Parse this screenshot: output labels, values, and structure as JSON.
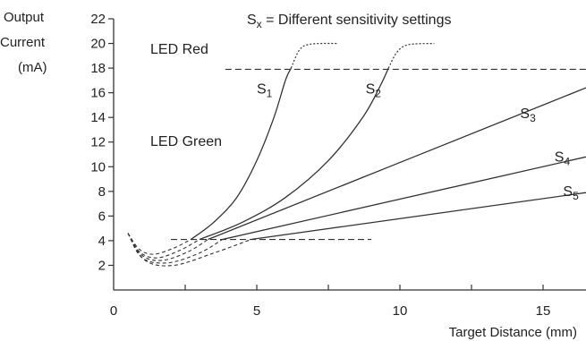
{
  "chart_data": {
    "type": "line",
    "title": "Sx = Different sensitivity settings",
    "title_parts": {
      "pre": "S",
      "sub": "x",
      "post": " = Different sensitivity settings"
    },
    "ylabel_lines": [
      "Output",
      "Current",
      "(mA)"
    ],
    "xlabel": "Target Distance (mm)",
    "xlim": [
      0,
      16.5
    ],
    "ylim": [
      0,
      22
    ],
    "xticks": [
      0,
      5,
      10,
      15
    ],
    "xtick_labels": [
      "0",
      "5",
      "10",
      "15"
    ],
    "yticks": [
      2,
      4,
      6,
      8,
      10,
      12,
      14,
      16,
      18,
      20,
      22
    ],
    "ytick_labels": [
      "2",
      "4",
      "6",
      "8",
      "10",
      "12",
      "14",
      "16",
      "18",
      "20",
      "22"
    ],
    "grid": false,
    "region_labels": [
      "LED Red",
      "LED Green"
    ],
    "thresholds": [
      {
        "y": 17.9,
        "x_start": 3.9,
        "x_end": 16.5
      },
      {
        "y": 4.1,
        "x_start": 2.0,
        "x_end": 9.0
      }
    ],
    "series": [
      {
        "name": "S1",
        "label_main": "S",
        "label_sub": "1",
        "label_at": [
          5.0,
          16.3
        ],
        "solid": [
          [
            2.7,
            4.1
          ],
          [
            3.5,
            5.5
          ],
          [
            4.3,
            7.5
          ],
          [
            5.0,
            10.5
          ],
          [
            5.6,
            14.0
          ],
          [
            6.0,
            17.0
          ],
          [
            6.2,
            18.0
          ]
        ],
        "dotted": [
          [
            6.2,
            18.0
          ],
          [
            6.5,
            19.5
          ],
          [
            6.9,
            19.95
          ],
          [
            7.8,
            20.0
          ]
        ],
        "dip": [
          [
            0.5,
            4.6
          ],
          [
            0.9,
            3.3
          ],
          [
            1.4,
            2.9
          ],
          [
            2.1,
            3.4
          ],
          [
            2.7,
            4.1
          ]
        ]
      },
      {
        "name": "S2",
        "label_main": "S",
        "label_sub": "2",
        "label_at": [
          8.8,
          16.3
        ],
        "solid": [
          [
            3.0,
            4.1
          ],
          [
            4.5,
            5.5
          ],
          [
            6.0,
            7.5
          ],
          [
            7.5,
            10.5
          ],
          [
            8.7,
            14.0
          ],
          [
            9.3,
            16.5
          ],
          [
            9.6,
            18.0
          ]
        ],
        "dotted": [
          [
            9.6,
            18.0
          ],
          [
            9.9,
            19.3
          ],
          [
            10.3,
            19.9
          ],
          [
            11.2,
            20.0
          ]
        ],
        "dip": [
          [
            0.5,
            4.6
          ],
          [
            0.9,
            3.1
          ],
          [
            1.5,
            2.6
          ],
          [
            2.3,
            3.2
          ],
          [
            3.0,
            4.1
          ]
        ]
      },
      {
        "name": "S3",
        "label_main": "S",
        "label_sub": "3",
        "label_at": [
          14.2,
          14.3
        ],
        "solid": [
          [
            3.3,
            4.1
          ],
          [
            16.5,
            16.4
          ]
        ],
        "dotted": [],
        "dip": [
          [
            0.5,
            4.6
          ],
          [
            1.0,
            2.8
          ],
          [
            1.7,
            2.4
          ],
          [
            2.6,
            3.1
          ],
          [
            3.3,
            4.1
          ]
        ]
      },
      {
        "name": "S4",
        "label_main": "S",
        "label_sub": "4",
        "label_at": [
          15.4,
          10.8
        ],
        "solid": [
          [
            3.8,
            4.1
          ],
          [
            16.5,
            10.8
          ]
        ],
        "dotted": [],
        "dip": [
          [
            0.5,
            4.6
          ],
          [
            1.0,
            2.6
          ],
          [
            1.9,
            2.2
          ],
          [
            3.0,
            3.0
          ],
          [
            3.8,
            4.1
          ]
        ]
      },
      {
        "name": "S5",
        "label_main": "S",
        "label_sub": "5",
        "label_at": [
          15.7,
          8.0
        ],
        "solid": [
          [
            4.8,
            4.1
          ],
          [
            16.5,
            7.9
          ]
        ],
        "dotted": [],
        "dip": [
          [
            0.5,
            4.6
          ],
          [
            1.1,
            2.4
          ],
          [
            2.1,
            2.0
          ],
          [
            3.5,
            3.0
          ],
          [
            4.8,
            4.1
          ]
        ]
      }
    ]
  }
}
